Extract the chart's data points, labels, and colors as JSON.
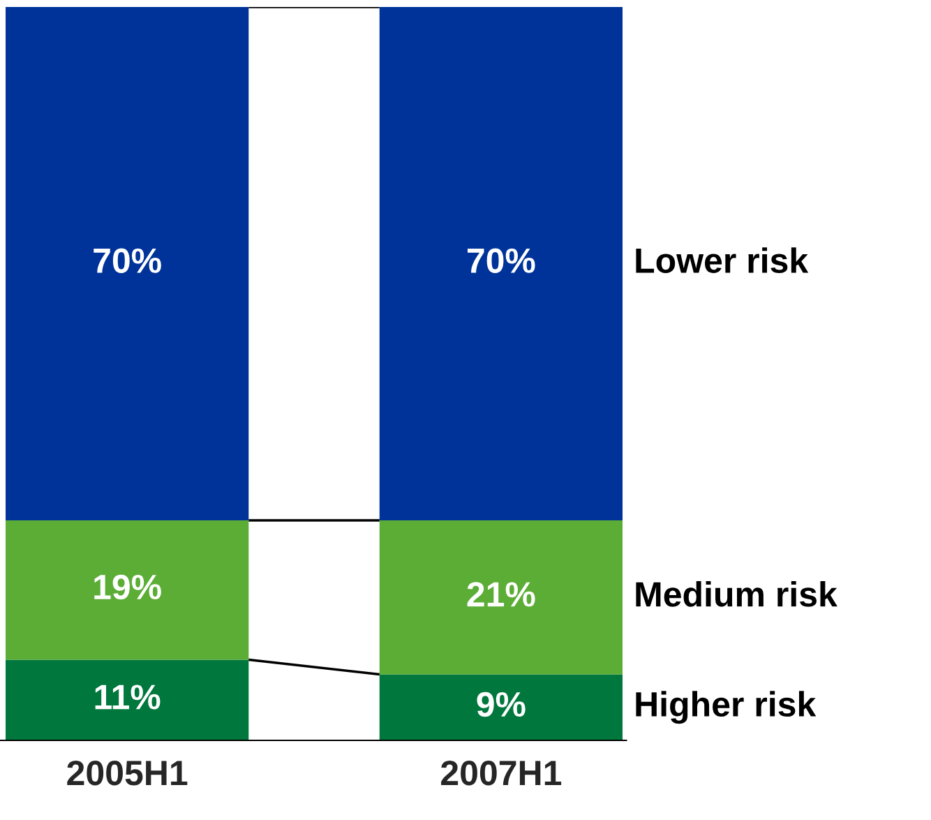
{
  "chart_data": {
    "type": "bar",
    "stacked": true,
    "grid": false,
    "legend": false,
    "categories": [
      "2005H1",
      "2007H1"
    ],
    "series": [
      {
        "name": "Higher risk",
        "color": "#00773c",
        "values": [
          11,
          9
        ],
        "value_labels": [
          "11%",
          "9%"
        ]
      },
      {
        "name": "Medium risk",
        "color": "#5bad35",
        "values": [
          19,
          21
        ],
        "value_labels": [
          "19%",
          "21%"
        ]
      },
      {
        "name": "Lower risk",
        "color": "#003399",
        "values": [
          70,
          70
        ],
        "value_labels": [
          "70%",
          "70%"
        ]
      }
    ]
  }
}
